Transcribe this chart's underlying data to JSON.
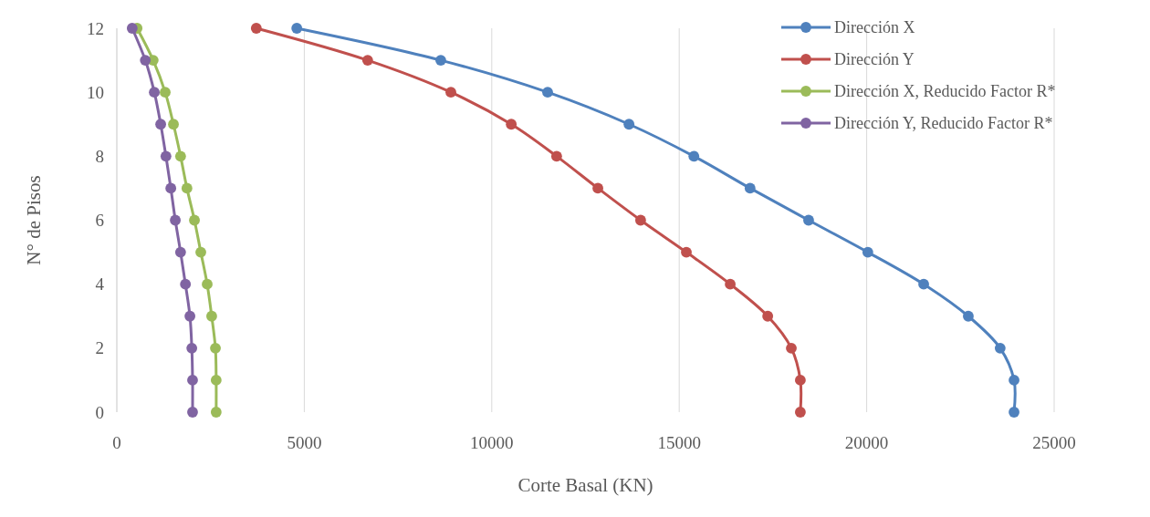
{
  "chart_data": {
    "type": "line",
    "xlabel": "Corte Basal (KN)",
    "ylabel": "N° de Pisos",
    "xlim": [
      0,
      25000
    ],
    "xticks": [
      0,
      5000,
      10000,
      15000,
      20000,
      25000
    ],
    "ylim": [
      0,
      12
    ],
    "yticks": [
      0,
      2,
      4,
      6,
      8,
      10,
      12
    ],
    "grid": "x",
    "legend": "top right",
    "marker": "circle",
    "series": [
      {
        "name": "Dirección X",
        "color": "#4f81bd",
        "x": [
          23930,
          23930,
          23560,
          22710,
          21520,
          20030,
          18450,
          16890,
          15390,
          13660,
          11490,
          8640,
          4800
        ],
        "values": [
          0,
          1,
          2,
          3,
          4,
          5,
          6,
          7,
          8,
          9,
          10,
          11,
          12
        ]
      },
      {
        "name": "Dirección Y",
        "color": "#c0504d",
        "x": [
          18230,
          18230,
          17990,
          17360,
          16360,
          15190,
          13970,
          12830,
          11730,
          10520,
          8910,
          6690,
          3720
        ],
        "values": [
          0,
          1,
          2,
          3,
          4,
          5,
          6,
          7,
          8,
          9,
          10,
          11,
          12
        ]
      },
      {
        "name": "Dirección X, Reducido Factor R*",
        "color": "#9bbb59",
        "x": [
          2650,
          2650,
          2630,
          2530,
          2410,
          2240,
          2070,
          1870,
          1700,
          1510,
          1290,
          970,
          540
        ],
        "values": [
          0,
          1,
          2,
          3,
          4,
          5,
          6,
          7,
          8,
          9,
          10,
          11,
          12
        ]
      },
      {
        "name": "Dirección Y, Reducido Factor R*",
        "color": "#8064a2",
        "x": [
          2020,
          2020,
          2000,
          1950,
          1830,
          1700,
          1560,
          1440,
          1310,
          1170,
          1000,
          760,
          410
        ],
        "values": [
          0,
          1,
          2,
          3,
          4,
          5,
          6,
          7,
          8,
          9,
          10,
          11,
          12
        ]
      }
    ]
  }
}
